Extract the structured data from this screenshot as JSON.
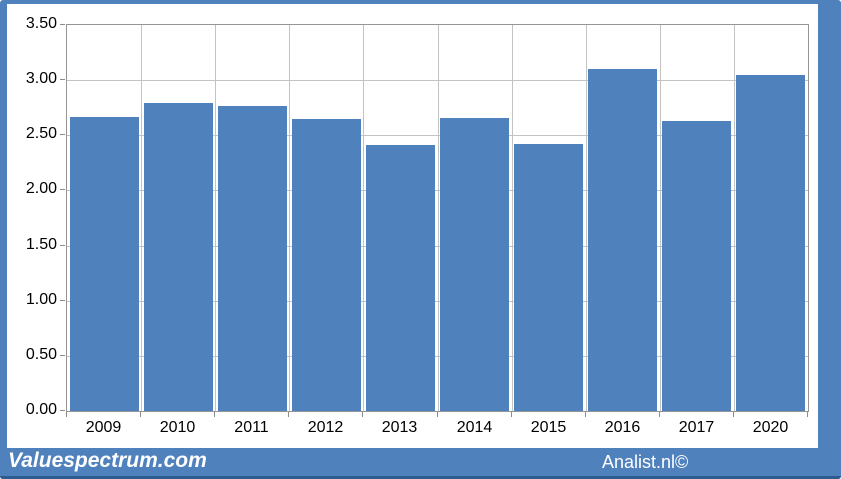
{
  "chart_data": {
    "type": "bar",
    "categories": [
      "2009",
      "2010",
      "2011",
      "2012",
      "2013",
      "2014",
      "2015",
      "2016",
      "2017",
      "2020"
    ],
    "values": [
      2.67,
      2.79,
      2.77,
      2.65,
      2.41,
      2.66,
      2.42,
      3.1,
      2.63,
      3.05
    ],
    "title": "",
    "xlabel": "",
    "ylabel": "",
    "ylim": [
      0,
      3.5
    ],
    "ytick_step": 0.5,
    "ytick_labels": [
      "0.00",
      "0.50",
      "1.00",
      "1.50",
      "2.00",
      "2.50",
      "3.00",
      "3.50"
    ],
    "grid": true,
    "legend": false,
    "bar_color": "#4f81bd"
  },
  "footer": {
    "left_text": "Valuespectrum.com",
    "right_text": "Analist.nl©"
  },
  "colors": {
    "accent_blue": "#4f81bd",
    "footer_line": "#2d5c8e",
    "gridline": "#c3c3c3",
    "plot_border": "#959595",
    "tick": "#8c8c8c",
    "text": "#000000",
    "watermark_text": "#ffffff"
  }
}
